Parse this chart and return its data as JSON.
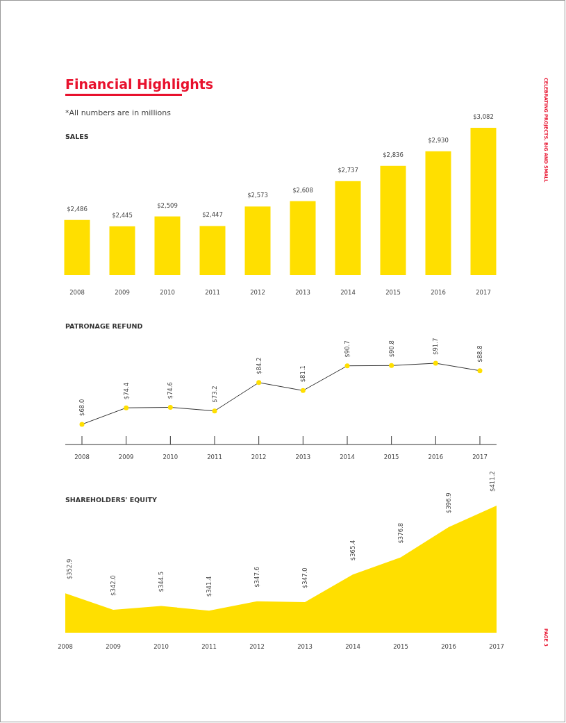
{
  "chart_data": [
    {
      "type": "bar",
      "title": "SALES",
      "annotations": [
        "Financial Highlights",
        "*All numbers are in millions",
        "CELEBRATING PROJECTS, BIG AND SMALL",
        "PAGE 3"
      ],
      "categories": [
        "2008",
        "2009",
        "2010",
        "2011",
        "2012",
        "2013",
        "2014",
        "2015",
        "2016",
        "2017"
      ],
      "series": [
        {
          "color": "#ffdf00",
          "values": [
            2486,
            2445,
            2509,
            2447,
            2573,
            2608,
            2737,
            2836,
            2930,
            3082
          ],
          "value_labels": [
            "$2,486",
            "$2,445",
            "$2,509",
            "$2,447",
            "$2,573",
            "$2,608",
            "$2,737",
            "$2,836",
            "$2,930",
            "$3,082"
          ]
        }
      ],
      "ylim": [
        2130,
        3082
      ],
      "tick_labels": "x",
      "data_labels": true
    },
    {
      "type": "line",
      "title": "PATRONAGE REFUND",
      "categories": [
        "2008",
        "2009",
        "2010",
        "2011",
        "2012",
        "2013",
        "2014",
        "2015",
        "2016",
        "2017"
      ],
      "series": [
        {
          "color": "#333333",
          "values": [
            68.0,
            74.4,
            74.6,
            73.2,
            84.2,
            81.1,
            90.7,
            90.8,
            91.7,
            88.8
          ],
          "value_labels": [
            "$68.0",
            "$74.4",
            "$74.6",
            "$73.2",
            "$84.2",
            "$81.1",
            "$90.7",
            "$90.8",
            "$91.7",
            "$88.8"
          ]
        }
      ],
      "tick_labels": "x",
      "data_labels": true,
      "marker": "circle"
    },
    {
      "type": "area",
      "title": "SHAREHOLDERS' EQUITY",
      "categories": [
        "2008",
        "2009",
        "2010",
        "2011",
        "2012",
        "2013",
        "2014",
        "2015",
        "2016",
        "2017"
      ],
      "series": [
        {
          "color": "#ffdf00",
          "values": [
            352.9,
            342.0,
            344.5,
            341.4,
            347.6,
            347.0,
            365.4,
            376.8,
            396.9,
            411.2
          ],
          "value_labels": [
            "$352.9",
            "$342.0",
            "$344.5",
            "$341.4",
            "$347.6",
            "$347.0",
            "$365.4",
            "$376.8",
            "$396.9",
            "$411.2"
          ]
        }
      ],
      "tick_labels": "x",
      "data_labels": true
    }
  ]
}
